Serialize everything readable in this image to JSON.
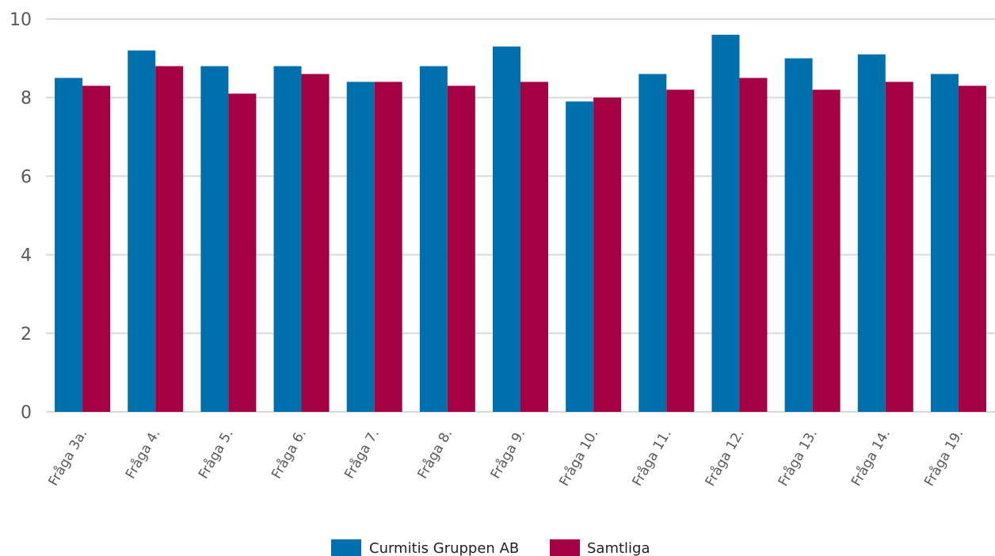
{
  "chart_data": {
    "type": "bar",
    "title": "",
    "xlabel": "",
    "ylabel": "",
    "ylim": [
      0,
      10
    ],
    "yticks": [
      0,
      2,
      4,
      6,
      8,
      10
    ],
    "grid": true,
    "legend_position": "bottom",
    "categories": [
      "Fråga 3a.",
      "Fråga 4.",
      "Fråga 5.",
      "Fråga 6.",
      "Fråga 7.",
      "Fråga 8.",
      "Fråga 9.",
      "Fråga 10.",
      "Fråga 11.",
      "Fråga 12.",
      "Fråga 13.",
      "Fråga 14.",
      "Fråga 19."
    ],
    "series": [
      {
        "name": "Curmitis Gruppen AB",
        "color": "#0070ad",
        "values": [
          8.5,
          9.2,
          8.8,
          8.8,
          8.4,
          8.8,
          9.3,
          7.9,
          8.6,
          9.6,
          9.0,
          9.1,
          8.6
        ]
      },
      {
        "name": "Samtliga",
        "color": "#a50044",
        "values": [
          8.3,
          8.8,
          8.1,
          8.6,
          8.4,
          8.3,
          8.4,
          8.0,
          8.2,
          8.5,
          8.2,
          8.4,
          8.3
        ]
      }
    ]
  }
}
